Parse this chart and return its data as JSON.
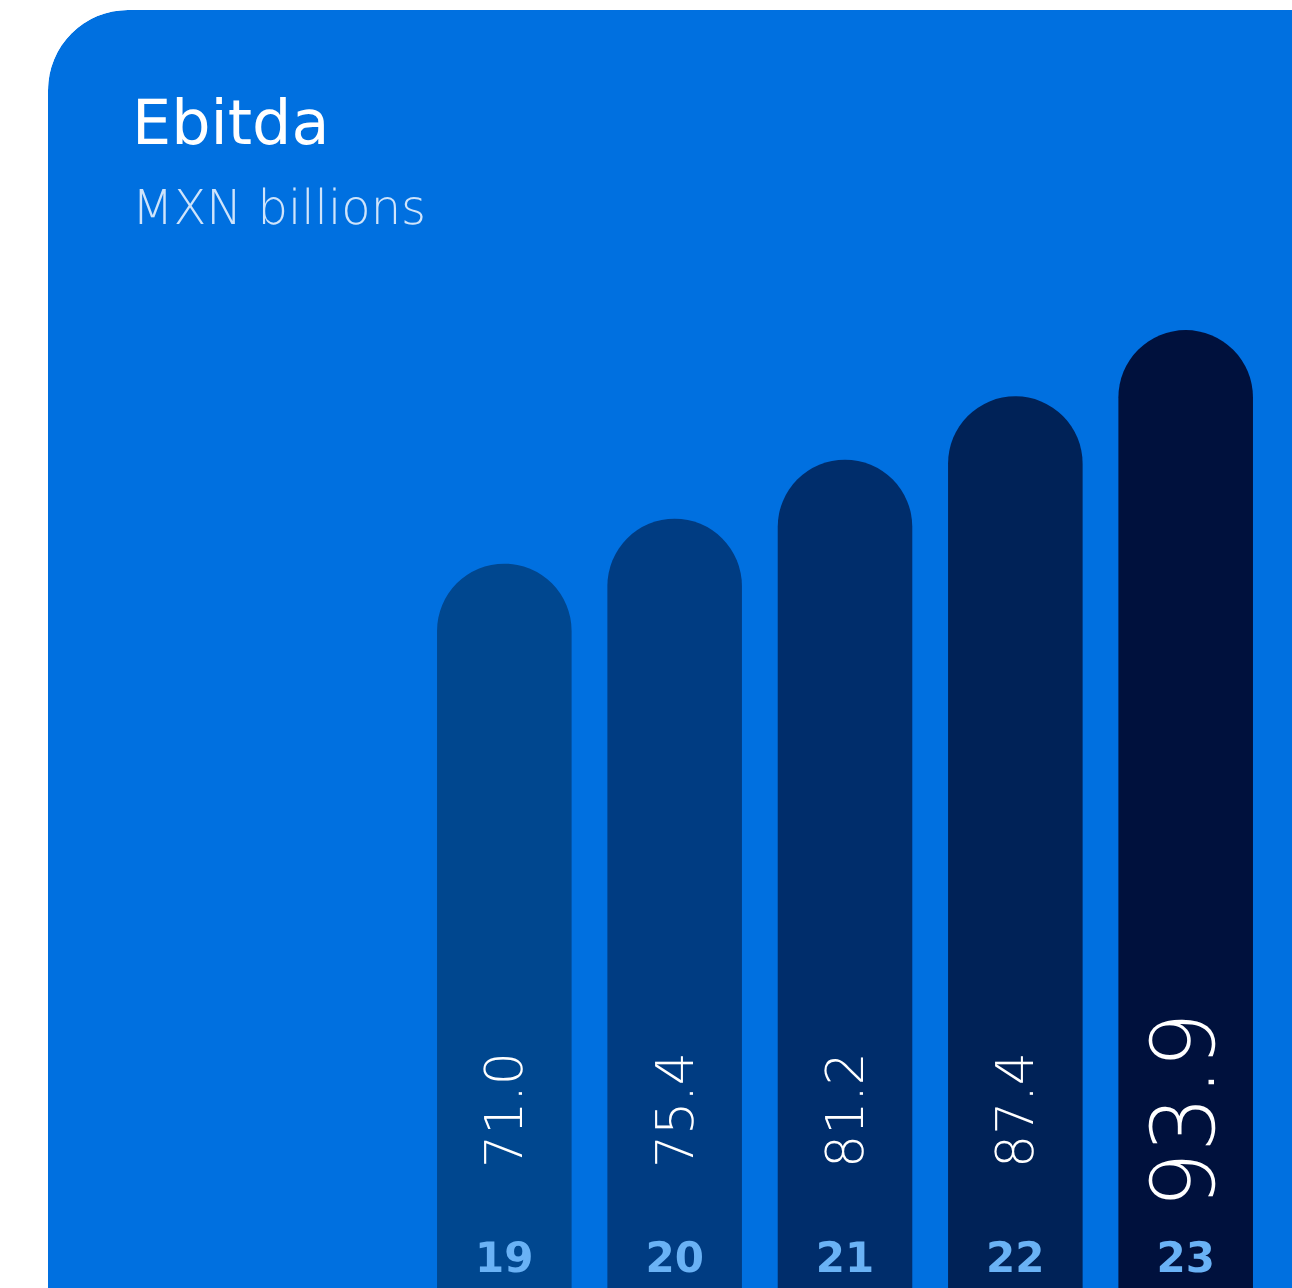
{
  "chart_data": {
    "type": "bar",
    "title": "Ebitda",
    "subtitle": "MXN billions",
    "categories": [
      "19",
      "20",
      "21",
      "22",
      "23"
    ],
    "values": [
      71.0,
      75.4,
      81.2,
      87.4,
      93.9
    ],
    "value_labels": [
      "71.0",
      "75.4",
      "81.2",
      "87.4",
      "93.9"
    ],
    "colors": [
      "#00478f",
      "#003c82",
      "#002d6b",
      "#002257",
      "#00113d"
    ]
  }
}
